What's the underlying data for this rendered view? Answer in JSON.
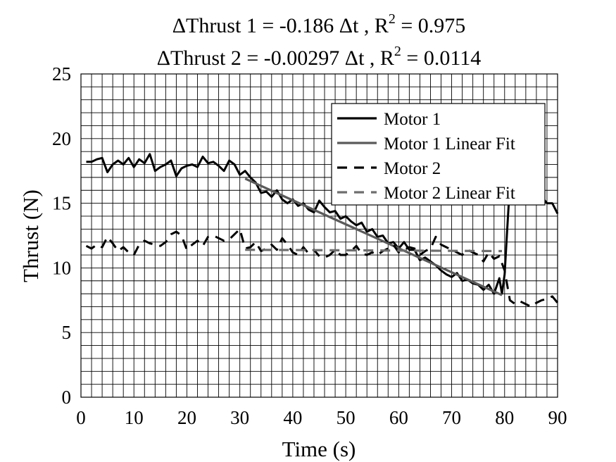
{
  "chart_data": {
    "type": "line",
    "title_lines": [
      {
        "pre": "ΔThrust 1 = -0.186 Δt , R",
        "sup": "2",
        "post": " = 0.975"
      },
      {
        "pre": "ΔThrust 2 = -0.00297 Δt , R",
        "sup": "2",
        "post": " = 0.0114"
      }
    ],
    "xlabel": "Time (s)",
    "ylabel": "Thrust (N)",
    "xlim": [
      0,
      90
    ],
    "ylim": [
      0,
      25
    ],
    "xticks": [
      0,
      10,
      20,
      30,
      40,
      50,
      60,
      70,
      80,
      90
    ],
    "yticks": [
      0,
      5,
      10,
      15,
      20,
      25
    ],
    "x_minor_step": 2,
    "y_minor_step": 1,
    "grid": true,
    "legend_position": "top-right",
    "series": [
      {
        "name": "Motor 1",
        "color": "#000000",
        "style": "solid",
        "x": [
          1,
          2,
          3,
          4,
          5,
          6,
          7,
          8,
          9,
          10,
          11,
          12,
          13,
          14,
          15,
          16,
          17,
          18,
          19,
          20,
          21,
          22,
          23,
          24,
          25,
          26,
          27,
          28,
          29,
          30,
          31,
          32,
          33,
          34,
          35,
          36,
          37,
          38,
          39,
          40,
          41,
          42,
          43,
          44,
          45,
          46,
          47,
          48,
          49,
          50,
          51,
          52,
          53,
          54,
          55,
          56,
          57,
          58,
          59,
          60,
          61,
          62,
          63,
          64,
          65,
          66,
          67,
          68,
          69,
          70,
          71,
          72,
          73,
          74,
          75,
          76,
          77,
          78,
          79,
          79.5,
          80,
          80.5,
          81,
          82,
          83,
          84,
          85,
          86,
          87,
          88,
          89,
          90
        ],
        "y": [
          18.2,
          18.2,
          18.4,
          18.5,
          17.4,
          18.0,
          18.3,
          18.0,
          18.5,
          17.8,
          18.4,
          18.1,
          18.8,
          17.5,
          17.8,
          18.0,
          18.3,
          17.1,
          17.7,
          17.9,
          18.0,
          17.8,
          18.6,
          18.1,
          18.2,
          17.9,
          17.5,
          18.3,
          18.0,
          17.2,
          17.5,
          17.0,
          16.6,
          15.8,
          15.9,
          15.5,
          16.0,
          15.3,
          15.0,
          15.3,
          14.8,
          15.0,
          14.5,
          14.3,
          15.2,
          14.7,
          14.3,
          14.4,
          13.8,
          14.0,
          13.6,
          13.3,
          13.5,
          12.8,
          13.0,
          12.4,
          12.5,
          11.9,
          12.0,
          11.5,
          12.0,
          11.4,
          11.4,
          10.6,
          10.8,
          10.5,
          10.2,
          9.8,
          9.5,
          9.3,
          9.6,
          9.0,
          9.1,
          8.8,
          8.7,
          8.3,
          8.7,
          8.0,
          9.2,
          8.0,
          9.5,
          13.0,
          16.5,
          17.5,
          18.0,
          16.8,
          16.5,
          16.0,
          15.5,
          15.0,
          15.0,
          14.2
        ]
      },
      {
        "name": "Motor 1 Linear Fit",
        "color": "#5a5a5a",
        "style": "solid",
        "x": [
          31,
          79.5
        ],
        "y": [
          16.9,
          7.9
        ]
      },
      {
        "name": "Motor 2",
        "color": "#000000",
        "style": "dashed",
        "x": [
          1,
          2,
          3,
          4,
          5,
          6,
          7,
          8,
          9,
          10,
          11,
          12,
          13,
          14,
          15,
          16,
          17,
          18,
          19,
          20,
          21,
          22,
          23,
          24,
          25,
          26,
          27,
          28,
          29,
          30,
          31,
          32,
          33,
          34,
          35,
          36,
          37,
          38,
          39,
          40,
          41,
          42,
          43,
          44,
          45,
          46,
          47,
          48,
          49,
          50,
          51,
          52,
          53,
          54,
          55,
          56,
          57,
          58,
          59,
          60,
          61,
          62,
          63,
          64,
          65,
          66,
          67,
          68,
          69,
          70,
          71,
          72,
          73,
          74,
          75,
          76,
          77,
          78,
          79,
          80,
          81,
          82,
          83,
          84,
          85,
          86,
          87,
          88,
          89,
          90
        ],
        "y": [
          11.7,
          11.5,
          11.8,
          11.6,
          12.4,
          11.9,
          11.3,
          11.6,
          11.2,
          11.0,
          11.8,
          12.1,
          11.9,
          11.8,
          11.7,
          12.0,
          12.6,
          12.8,
          12.5,
          11.4,
          11.8,
          12.1,
          11.7,
          12.4,
          12.5,
          12.3,
          12.1,
          12.2,
          12.6,
          13.0,
          11.5,
          11.6,
          12.0,
          11.3,
          11.5,
          11.8,
          11.4,
          12.3,
          11.8,
          11.2,
          11.0,
          11.6,
          11.1,
          11.4,
          10.9,
          10.8,
          11.0,
          11.4,
          11.0,
          11.0,
          11.3,
          11.7,
          11.1,
          11.0,
          11.2,
          11.0,
          11.3,
          11.5,
          11.8,
          11.2,
          11.4,
          11.6,
          11.5,
          11.0,
          11.3,
          11.5,
          12.4,
          11.8,
          11.6,
          11.4,
          11.2,
          11.0,
          11.4,
          11.2,
          11.0,
          10.5,
          11.2,
          10.7,
          10.9,
          9.8,
          7.5,
          7.2,
          7.4,
          7.2,
          7.0,
          7.3,
          7.5,
          7.6,
          7.8,
          7.3
        ]
      },
      {
        "name": "Motor 2 Linear Fit",
        "color": "#6e6e6e",
        "style": "dashed",
        "x": [
          31,
          79.5
        ],
        "y": [
          11.4,
          11.3
        ]
      }
    ]
  }
}
